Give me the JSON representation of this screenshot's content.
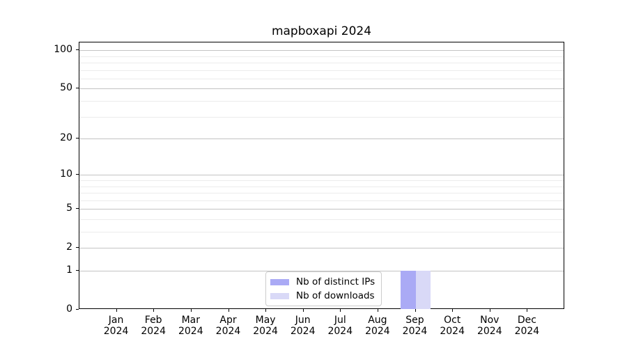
{
  "chart_data": {
    "type": "bar",
    "title": "mapboxapi 2024",
    "x_axis": {
      "months": [
        "Jan",
        "Feb",
        "Mar",
        "Apr",
        "May",
        "Jun",
        "Jul",
        "Aug",
        "Sep",
        "Oct",
        "Nov",
        "Dec"
      ],
      "year": "2024"
    },
    "y_axis": {
      "scale": "log1p",
      "ticks": [
        0,
        1,
        2,
        5,
        10,
        20,
        50,
        100
      ],
      "minor_ticks": [
        3,
        4,
        6,
        7,
        8,
        9,
        30,
        40,
        60,
        70,
        80,
        90
      ],
      "axis_max": 115,
      "grid": true
    },
    "series": [
      {
        "name": "Nb of distinct IPs",
        "color": "#aaaaf5",
        "values": [
          0,
          0,
          0,
          0,
          0,
          0,
          0,
          0,
          1,
          0,
          0,
          0
        ]
      },
      {
        "name": "Nb of downloads",
        "color": "#d9d9f7",
        "values": [
          0,
          0,
          0,
          0,
          0,
          0,
          0,
          0,
          1,
          0,
          0,
          0
        ]
      }
    ],
    "legend": {
      "position": "lower center"
    }
  }
}
